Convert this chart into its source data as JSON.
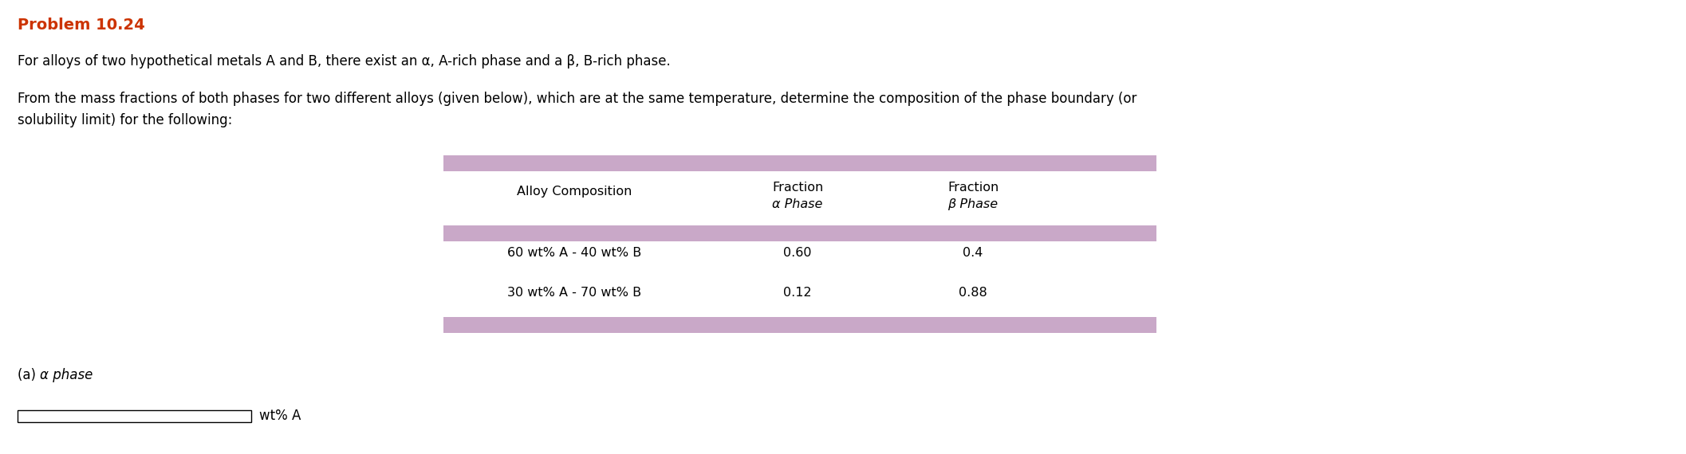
{
  "title": "Problem 10.24",
  "title_color": "#cc3300",
  "bg_color": "#ffffff",
  "line1": "For alloys of two hypothetical metals A and B, there exist an α, A-rich phase and a β, B-rich phase.",
  "line2_part1": "From the mass fractions of both phases for two different alloys (given below), which are at the same temperature, determine the composition of the phase boundary (or",
  "line2_part2": "solubility limit) for the following:",
  "table_header_col1": "Alloy Composition",
  "table_header_col2_line1": "Fraction",
  "table_header_col2_line2": "α Phase",
  "table_header_col3_line1": "Fraction",
  "table_header_col3_line2": "β Phase",
  "row1_col1": "60 wt% A - 40 wt% B",
  "row1_col2": "0.60",
  "row1_col3": "0.4",
  "row2_col1": "30 wt% A - 70 wt% B",
  "row2_col2": "0.12",
  "row2_col3": "0.88",
  "footer_line1": "(a) α phase",
  "purple_bar_color": "#c9a8c8",
  "font_size_title": 14,
  "font_size_body": 12,
  "font_size_table": 11.5,
  "font_size_footer": 12
}
